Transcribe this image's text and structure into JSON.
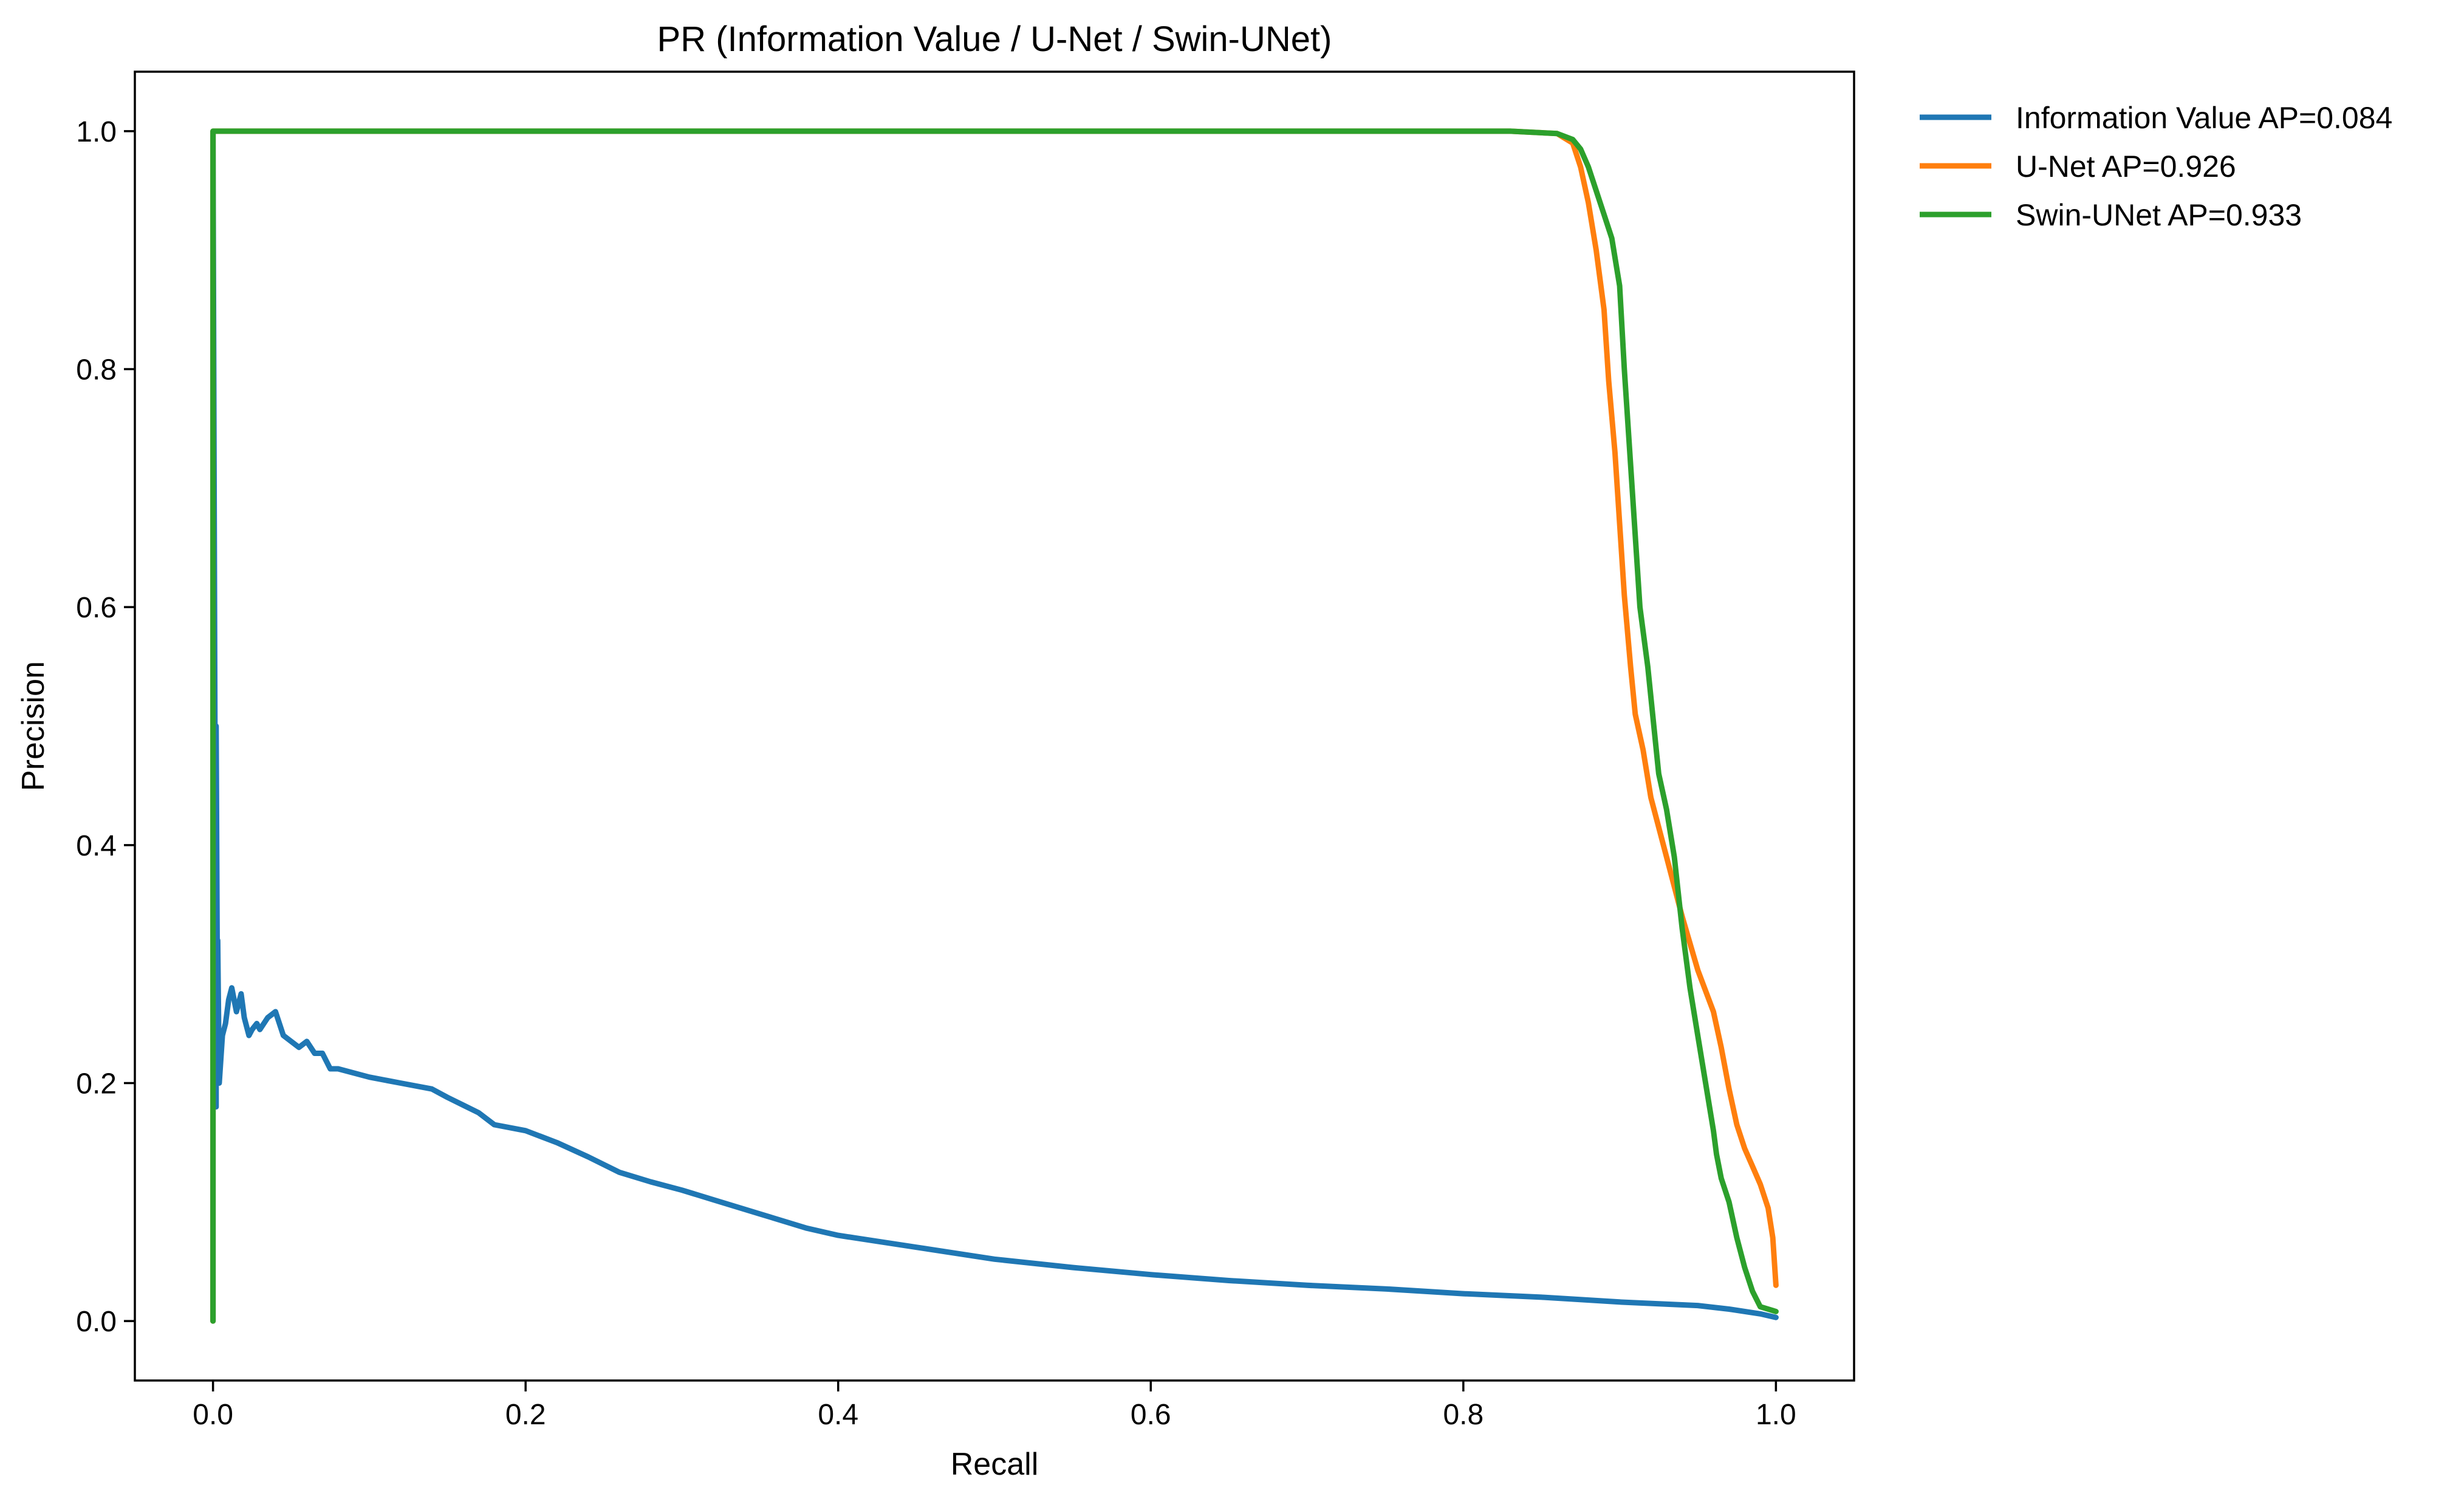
{
  "chart_data": {
    "type": "line",
    "title": "PR (Information Value / U-Net / Swin-UNet)",
    "xlabel": "Recall",
    "ylabel": "Precision",
    "xlim": [
      -0.05,
      1.05
    ],
    "ylim": [
      -0.05,
      1.05
    ],
    "xticks": [
      "0.0",
      "0.2",
      "0.4",
      "0.6",
      "0.8",
      "1.0"
    ],
    "yticks": [
      "0.0",
      "0.2",
      "0.4",
      "0.6",
      "0.8",
      "1.0"
    ],
    "grid": false,
    "legend_position": "outside-top-right",
    "series": [
      {
        "name": "Information Value  AP=0.084",
        "color": "#1f77b4",
        "x": [
          0.0,
          0.0,
          0.002,
          0.002,
          0.003,
          0.003,
          0.004,
          0.005,
          0.006,
          0.008,
          0.01,
          0.012,
          0.015,
          0.018,
          0.02,
          0.023,
          0.025,
          0.028,
          0.03,
          0.035,
          0.04,
          0.045,
          0.05,
          0.055,
          0.06,
          0.065,
          0.07,
          0.075,
          0.08,
          0.1,
          0.12,
          0.14,
          0.15,
          0.17,
          0.18,
          0.2,
          0.22,
          0.24,
          0.26,
          0.28,
          0.3,
          0.32,
          0.35,
          0.38,
          0.4,
          0.45,
          0.5,
          0.55,
          0.6,
          0.65,
          0.7,
          0.75,
          0.8,
          0.85,
          0.9,
          0.95,
          0.97,
          0.99,
          1.0
        ],
        "y": [
          0.0,
          1.0,
          0.18,
          0.5,
          0.22,
          0.32,
          0.2,
          0.22,
          0.24,
          0.25,
          0.27,
          0.28,
          0.26,
          0.275,
          0.255,
          0.24,
          0.245,
          0.25,
          0.245,
          0.255,
          0.26,
          0.24,
          0.235,
          0.23,
          0.235,
          0.225,
          0.225,
          0.212,
          0.212,
          0.205,
          0.2,
          0.195,
          0.188,
          0.175,
          0.165,
          0.16,
          0.15,
          0.138,
          0.125,
          0.117,
          0.11,
          0.102,
          0.09,
          0.078,
          0.072,
          0.062,
          0.052,
          0.045,
          0.039,
          0.034,
          0.03,
          0.027,
          0.023,
          0.02,
          0.016,
          0.013,
          0.01,
          0.006,
          0.003
        ]
      },
      {
        "name": "U-Net  AP=0.926",
        "color": "#ff7f0e",
        "x": [
          0.0,
          0.0,
          0.1,
          0.3,
          0.5,
          0.7,
          0.83,
          0.86,
          0.87,
          0.875,
          0.88,
          0.885,
          0.89,
          0.893,
          0.897,
          0.9,
          0.903,
          0.907,
          0.91,
          0.915,
          0.92,
          0.93,
          0.94,
          0.95,
          0.96,
          0.965,
          0.97,
          0.975,
          0.98,
          0.985,
          0.99,
          0.995,
          0.998,
          1.0
        ],
        "y": [
          0.0,
          1.0,
          1.0,
          1.0,
          1.0,
          1.0,
          1.0,
          0.998,
          0.99,
          0.97,
          0.94,
          0.9,
          0.85,
          0.79,
          0.73,
          0.67,
          0.61,
          0.55,
          0.51,
          0.48,
          0.44,
          0.39,
          0.34,
          0.295,
          0.26,
          0.23,
          0.195,
          0.165,
          0.145,
          0.13,
          0.115,
          0.095,
          0.07,
          0.03
        ]
      },
      {
        "name": "Swin-UNet  AP=0.933",
        "color": "#2ca02c",
        "x": [
          0.0,
          0.0,
          0.1,
          0.3,
          0.5,
          0.7,
          0.83,
          0.86,
          0.87,
          0.875,
          0.88,
          0.885,
          0.89,
          0.895,
          0.9,
          0.903,
          0.907,
          0.91,
          0.913,
          0.918,
          0.925,
          0.93,
          0.935,
          0.94,
          0.945,
          0.95,
          0.955,
          0.96,
          0.962,
          0.965,
          0.97,
          0.975,
          0.98,
          0.985,
          0.99,
          1.0
        ],
        "y": [
          0.0,
          1.0,
          1.0,
          1.0,
          1.0,
          1.0,
          1.0,
          0.998,
          0.993,
          0.985,
          0.97,
          0.95,
          0.93,
          0.91,
          0.87,
          0.8,
          0.72,
          0.66,
          0.6,
          0.55,
          0.46,
          0.43,
          0.39,
          0.33,
          0.28,
          0.24,
          0.2,
          0.16,
          0.14,
          0.12,
          0.1,
          0.07,
          0.045,
          0.025,
          0.012,
          0.008
        ]
      }
    ]
  }
}
